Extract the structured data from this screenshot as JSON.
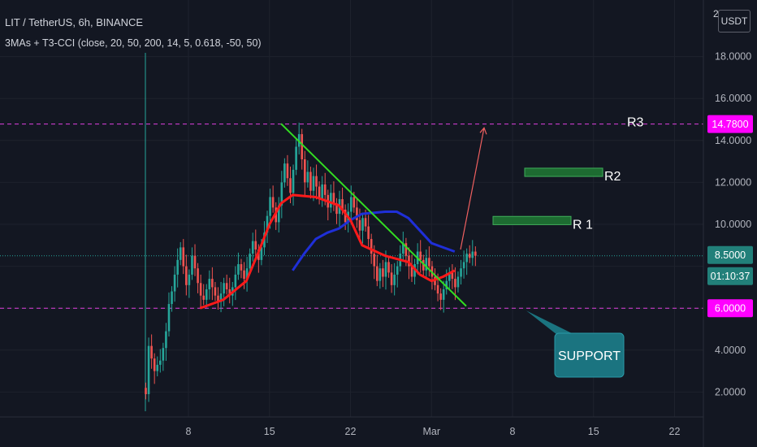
{
  "header": {
    "symbol_line": "LIT / TetherUS, 6h, BINANCE",
    "indicator_line": "3MAs + T3-CCI (close, 20, 50, 200, 14, 5, 0.618, -50, 50)"
  },
  "currency_button": "USDT",
  "price_axis": {
    "top_clip": "2",
    "ticks": [
      "18.0000",
      "16.0000",
      "14.0000",
      "12.0000",
      "10.0000",
      "4.0000",
      "2.0000"
    ]
  },
  "time_axis": {
    "ticks": [
      "8",
      "15",
      "22",
      "Mar",
      "8",
      "15",
      "22"
    ]
  },
  "price_badges": {
    "r3_level": "14.7800",
    "last_price": "8.5000",
    "countdown": "01:10:37",
    "support_level": "6.0000"
  },
  "colors": {
    "background": "#131722",
    "up_candle": "#26a69a",
    "down_candle": "#ef5350",
    "ma_fast": "#ff1a1a",
    "ma_slow": "#1f2fd8",
    "trendline": "#33dd22",
    "level_dashed": "#e040e0",
    "badge_magenta": "#ff00ff",
    "badge_teal": "#22807a",
    "support_box": "#1b7480",
    "resistance_box": "#1d6b31",
    "arrow": "#f06060"
  },
  "chart_data": {
    "type": "candlestick",
    "symbol": "LIT / TetherUS",
    "interval": "6h",
    "exchange": "BINANCE",
    "ylim": [
      1.0,
      19.5
    ],
    "candles_close": [
      1.9,
      4.2,
      3.6,
      3.0,
      3.3,
      3.5,
      4.1,
      4.9,
      6.2,
      6.8,
      7.6,
      8.3,
      8.9,
      8.0,
      7.1,
      7.6,
      8.5,
      7.9,
      7.2,
      6.6,
      6.4,
      6.9,
      7.4,
      7.0,
      6.6,
      6.3,
      6.7,
      7.2,
      6.9,
      6.6,
      7.0,
      7.6,
      8.1,
      7.8,
      7.4,
      7.9,
      8.6,
      9.2,
      8.8,
      8.3,
      8.9,
      9.6,
      10.4,
      11.3,
      10.8,
      10.1,
      10.9,
      12.0,
      12.9,
      12.2,
      11.5,
      12.6,
      13.7,
      14.3,
      13.1,
      12.0,
      12.5,
      11.6,
      12.3,
      11.8,
      11.2,
      11.9,
      11.4,
      10.8,
      11.5,
      11.0,
      10.5,
      11.2,
      10.7,
      10.1,
      10.6,
      11.3,
      10.8,
      10.2,
      9.7,
      10.3,
      9.9,
      9.3,
      8.6,
      8.0,
      7.3,
      7.9,
      7.5,
      8.2,
      7.7,
      7.1,
      7.6,
      8.0,
      8.6,
      9.1,
      8.5,
      8.0,
      7.5,
      8.1,
      8.7,
      8.3,
      7.8,
      8.4,
      8.0,
      7.5,
      7.1,
      6.7,
      6.4,
      6.9,
      7.3,
      7.7,
      7.4,
      7.0,
      7.5,
      7.9,
      8.2,
      8.6,
      8.4,
      8.7,
      8.5
    ],
    "ma_fast_red": [
      {
        "x": "Feb 9",
        "y": 6.0
      },
      {
        "x": "Feb 11",
        "y": 6.4
      },
      {
        "x": "Feb 13",
        "y": 7.3
      },
      {
        "x": "Feb 14",
        "y": 8.6
      },
      {
        "x": "Feb 15",
        "y": 10.0
      },
      {
        "x": "Feb 16",
        "y": 11.0
      },
      {
        "x": "Feb 17",
        "y": 11.4
      },
      {
        "x": "Feb 19",
        "y": 11.3
      },
      {
        "x": "Feb 21",
        "y": 10.9
      },
      {
        "x": "Feb 22",
        "y": 10.2
      },
      {
        "x": "Feb 23",
        "y": 9.0
      },
      {
        "x": "Feb 25",
        "y": 8.5
      },
      {
        "x": "Feb 27",
        "y": 8.2
      },
      {
        "x": "Feb 28",
        "y": 7.6
      },
      {
        "x": "Mar 1",
        "y": 7.3
      },
      {
        "x": "Mar 2",
        "y": 7.5
      },
      {
        "x": "Mar 3",
        "y": 7.8
      }
    ],
    "ma_slow_blue": [
      {
        "x": "Feb 17",
        "y": 7.8
      },
      {
        "x": "Feb 18",
        "y": 8.6
      },
      {
        "x": "Feb 19",
        "y": 9.3
      },
      {
        "x": "Feb 20",
        "y": 9.6
      },
      {
        "x": "Feb 21",
        "y": 9.8
      },
      {
        "x": "Feb 22",
        "y": 10.2
      },
      {
        "x": "Feb 23",
        "y": 10.5
      },
      {
        "x": "Feb 25",
        "y": 10.6
      },
      {
        "x": "Feb 26",
        "y": 10.6
      },
      {
        "x": "Feb 27",
        "y": 10.3
      },
      {
        "x": "Feb 28",
        "y": 9.7
      },
      {
        "x": "Mar 1",
        "y": 9.1
      },
      {
        "x": "Mar 2",
        "y": 8.9
      },
      {
        "x": "Mar 3",
        "y": 8.7
      }
    ],
    "levels": [
      {
        "label": "R3",
        "price": 14.78
      },
      {
        "label": "SUPPORT",
        "price": 6.0
      }
    ],
    "last_price": 8.5,
    "resistance_zones": [
      {
        "label": "R2",
        "price_low": 12.4,
        "price_high": 12.6
      },
      {
        "label": "R 1",
        "price_low": 10.1,
        "price_high": 10.3
      }
    ],
    "trendline": [
      {
        "x": "Feb 16",
        "y": 14.8
      },
      {
        "x": "Mar 4",
        "y": 6.1
      }
    ],
    "annotations": [
      "R3",
      "R2",
      "R 1",
      "SUPPORT"
    ],
    "projection_arrow": [
      {
        "x": "Mar 3",
        "y": 8.8
      },
      {
        "x": "Mar 5",
        "y": 14.6
      }
    ]
  }
}
